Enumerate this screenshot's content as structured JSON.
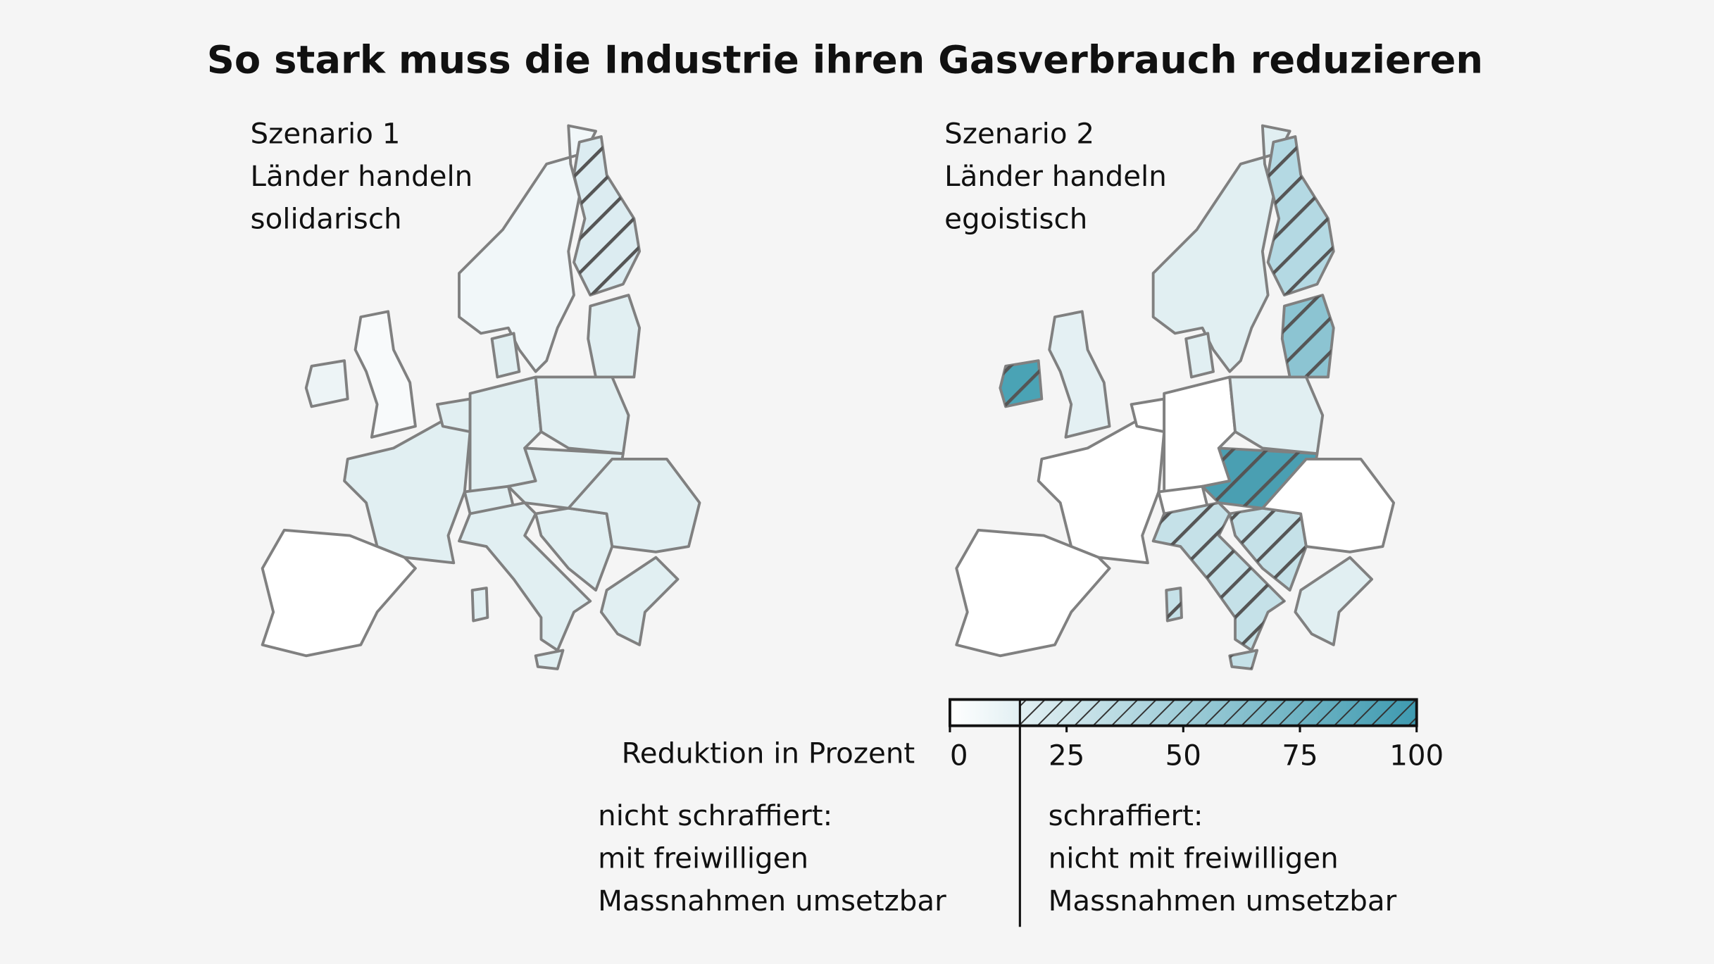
{
  "title": "So stark muss die Industrie ihren Gasverbrauch reduzieren",
  "maps": [
    {
      "caption": [
        "Szenario 1",
        "Länder handeln",
        "solidarisch"
      ]
    },
    {
      "caption": [
        "Szenario 2",
        "Länder handeln",
        "egoistisch"
      ]
    }
  ],
  "legend": {
    "title": "Reduktion in Prozent",
    "lim": [
      0,
      100
    ],
    "ticks": [
      0,
      25,
      50,
      75,
      100
    ],
    "hatch_from": 15,
    "color_low": "#ffffff",
    "color_high": "#3e9ab0",
    "left_note": [
      "nicht schraffiert:",
      "mit freiwilligen",
      "Massnahmen umsetzbar"
    ],
    "right_note": [
      "schraffiert:",
      "nicht mit freiwilligen",
      "Massnahmen umsetzbar"
    ]
  }
}
